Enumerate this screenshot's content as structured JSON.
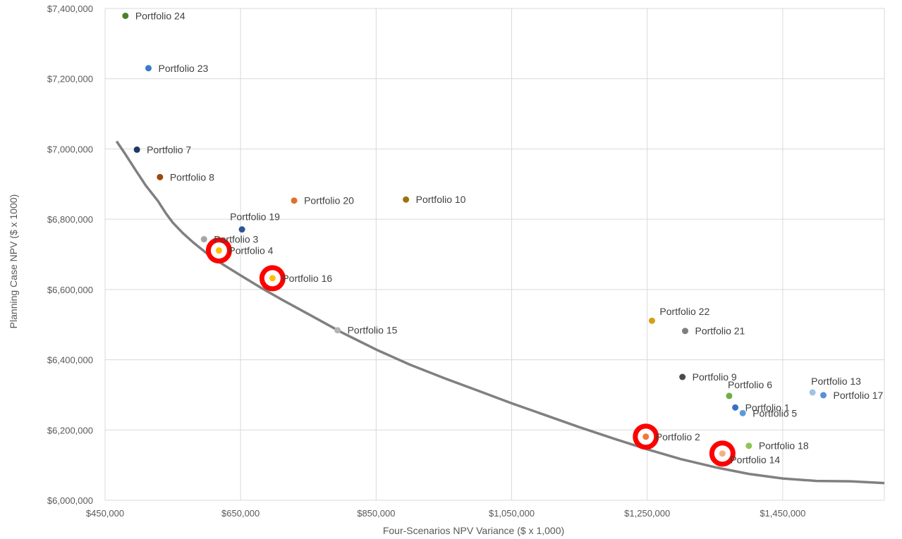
{
  "chart_data": {
    "type": "scatter",
    "title": "",
    "xlabel": "Four-Scenarios  NPV Variance ($ x 1,000)",
    "ylabel": "Planning Case NPV ($ x 1000)",
    "xlim": [
      450000,
      1600000
    ],
    "ylim": [
      6000000,
      7400000
    ],
    "x_ticks": [
      450000,
      650000,
      850000,
      1050000,
      1250000,
      1450000
    ],
    "x_tick_labels": [
      "$450,000",
      "$650,000",
      "$850,000",
      "$1,050,000",
      "$1,250,000",
      "$1,450,000"
    ],
    "y_ticks": [
      6000000,
      6200000,
      6400000,
      6600000,
      6800000,
      7000000,
      7200000,
      7400000
    ],
    "y_tick_labels": [
      "$6,000,000",
      "$6,200,000",
      "$6,400,000",
      "$6,600,000",
      "$6,800,000",
      "$7,000,000",
      "$7,200,000",
      "$7,400,000"
    ],
    "grid": true,
    "points": [
      {
        "name": "Portfolio 24",
        "x": 480000,
        "y": 7379000,
        "color": "#4a7f2f",
        "label_pos": "right",
        "highlight": false
      },
      {
        "name": "Portfolio 23",
        "x": 514000,
        "y": 7230000,
        "color": "#3b7bc4",
        "label_pos": "right",
        "highlight": false
      },
      {
        "name": "Portfolio 7",
        "x": 497000,
        "y": 6998000,
        "color": "#1f3864",
        "label_pos": "right",
        "highlight": false
      },
      {
        "name": "Portfolio 8",
        "x": 531000,
        "y": 6920000,
        "color": "#9e480e",
        "label_pos": "right",
        "highlight": false
      },
      {
        "name": "Portfolio 20",
        "x": 729000,
        "y": 6853000,
        "color": "#e0702b",
        "label_pos": "right",
        "highlight": false
      },
      {
        "name": "Portfolio 10",
        "x": 894000,
        "y": 6856000,
        "color": "#9c7308",
        "label_pos": "right",
        "highlight": false
      },
      {
        "name": "Portfolio 19",
        "x": 652000,
        "y": 6771000,
        "color": "#2f5597",
        "label_pos": "above-left",
        "highlight": false
      },
      {
        "name": "Portfolio 3",
        "x": 596000,
        "y": 6743000,
        "color": "#a5a5a5",
        "label_pos": "right",
        "highlight": false
      },
      {
        "name": "Portfolio 4",
        "x": 618000,
        "y": 6711000,
        "color": "#ffc000",
        "label_pos": "right",
        "highlight": true
      },
      {
        "name": "Portfolio 16",
        "x": 697000,
        "y": 6632000,
        "color": "#ffc000",
        "label_pos": "right",
        "highlight": true
      },
      {
        "name": "Portfolio 15",
        "x": 793000,
        "y": 6484000,
        "color": "#b4b4b4",
        "label_pos": "right",
        "highlight": false
      },
      {
        "name": "Portfolio 22",
        "x": 1257000,
        "y": 6511000,
        "color": "#d4a017",
        "label_pos": "above-right",
        "highlight": false
      },
      {
        "name": "Portfolio 21",
        "x": 1306000,
        "y": 6482000,
        "color": "#7f7f7f",
        "label_pos": "right",
        "highlight": false
      },
      {
        "name": "Portfolio 9",
        "x": 1302000,
        "y": 6351000,
        "color": "#4a4a4a",
        "label_pos": "right",
        "highlight": false
      },
      {
        "name": "Portfolio 6",
        "x": 1371000,
        "y": 6297000,
        "color": "#70ad47",
        "label_pos": "above",
        "highlight": false
      },
      {
        "name": "Portfolio 13",
        "x": 1494000,
        "y": 6307000,
        "color": "#9dc3e6",
        "label_pos": "above",
        "highlight": false
      },
      {
        "name": "Portfolio 17",
        "x": 1510000,
        "y": 6299000,
        "color": "#5b8fd6",
        "label_pos": "right",
        "highlight": false
      },
      {
        "name": "Portfolio 1",
        "x": 1380000,
        "y": 6264000,
        "color": "#3b6fc4",
        "label_pos": "right",
        "highlight": false
      },
      {
        "name": "Portfolio 5",
        "x": 1391000,
        "y": 6248000,
        "color": "#5b9bd5",
        "label_pos": "right",
        "highlight": false
      },
      {
        "name": "Portfolio 2",
        "x": 1248000,
        "y": 6181000,
        "color": "#ed7d31",
        "label_pos": "right",
        "highlight": true
      },
      {
        "name": "Portfolio 18",
        "x": 1400000,
        "y": 6155000,
        "color": "#8fc45a",
        "label_pos": "right",
        "highlight": false
      },
      {
        "name": "Portfolio 14",
        "x": 1361000,
        "y": 6133000,
        "color": "#f4b183",
        "label_pos": "below-right",
        "highlight": true
      }
    ],
    "frontier": {
      "color": "#808080",
      "points": [
        [
          467000,
          7022000
        ],
        [
          480000,
          6985000
        ],
        [
          495000,
          6940000
        ],
        [
          510000,
          6896000
        ],
        [
          528000,
          6852000
        ],
        [
          540000,
          6816000
        ],
        [
          550000,
          6790000
        ],
        [
          565000,
          6760000
        ],
        [
          580000,
          6734000
        ],
        [
          600000,
          6703000
        ],
        [
          625000,
          6670000
        ],
        [
          650000,
          6640000
        ],
        [
          680000,
          6605000
        ],
        [
          710000,
          6572000
        ],
        [
          750000,
          6530000
        ],
        [
          800000,
          6477000
        ],
        [
          850000,
          6429000
        ],
        [
          900000,
          6386000
        ],
        [
          950000,
          6348000
        ],
        [
          1000000,
          6312000
        ],
        [
          1050000,
          6276000
        ],
        [
          1100000,
          6242000
        ],
        [
          1150000,
          6208000
        ],
        [
          1200000,
          6176000
        ],
        [
          1250000,
          6145000
        ],
        [
          1300000,
          6117000
        ],
        [
          1350000,
          6094000
        ],
        [
          1400000,
          6075000
        ],
        [
          1450000,
          6062000
        ],
        [
          1500000,
          6055000
        ],
        [
          1550000,
          6054000
        ],
        [
          1600000,
          6049000
        ]
      ]
    },
    "highlight_color": "#ff0000"
  }
}
